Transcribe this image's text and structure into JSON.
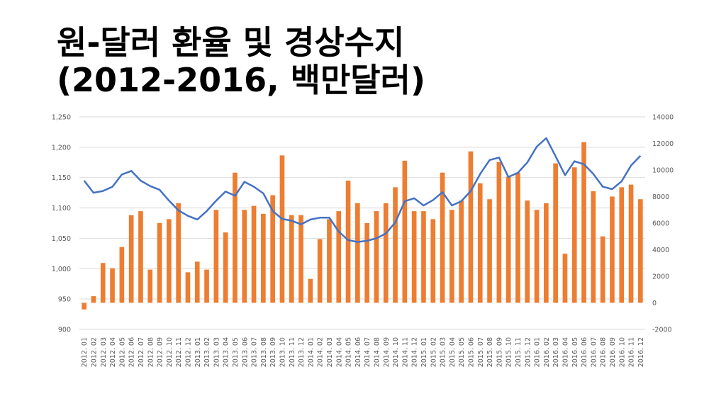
{
  "title": {
    "line1": "원-달러 환율 및 경상수지",
    "line2": "(2012-2016, 백만달러)"
  },
  "chart_data": {
    "type": "bar+line",
    "x": [
      "2012. 01",
      "2012. 02",
      "2012. 03",
      "2012. 04",
      "2012. 05",
      "2012. 06",
      "2012. 07",
      "2012. 08",
      "2012. 09",
      "2012. 10",
      "2012. 11",
      "2012. 12",
      "2013. 01",
      "2013. 02",
      "2013. 03",
      "2013. 04",
      "2013. 05",
      "2013. 06",
      "2013. 07",
      "2013. 08",
      "2013. 09",
      "2013. 10",
      "2013. 11",
      "2013. 12",
      "2014. 01",
      "2014. 02",
      "2014. 03",
      "2014. 04",
      "2014. 05",
      "2014. 06",
      "2014. 07",
      "2014. 08",
      "2014. 09",
      "2014. 10",
      "2014. 11",
      "2014. 12",
      "2015. 01",
      "2015. 02",
      "2015. 03",
      "2015. 04",
      "2015. 05",
      "2015. 06",
      "2015. 07",
      "2015. 08",
      "2015. 09",
      "2015. 10",
      "2015. 11",
      "2015. 12",
      "2016. 01",
      "2016. 02",
      "2016. 03",
      "2016. 04",
      "2016. 05",
      "2016. 06",
      "2016. 07",
      "2016. 08",
      "2016. 09",
      "2016. 10",
      "2016. 11",
      "2016. 12"
    ],
    "left_axis": {
      "ylim": [
        900,
        1250
      ],
      "ticks": [
        "900",
        "950",
        "1,000",
        "1,050",
        "1,100",
        "1,150",
        "1,200",
        "1,250"
      ]
    },
    "right_axis": {
      "ylim": [
        -2000,
        14000
      ],
      "ticks": [
        "-2000",
        "0",
        "2000",
        "4000",
        "6000",
        "8000",
        "10000",
        "12000",
        "14000"
      ]
    },
    "grid": true,
    "series": [
      {
        "type": "bar",
        "axis": "right",
        "color": "#ED7D31",
        "values": [
          -500,
          500,
          3000,
          2600,
          4200,
          6600,
          6900,
          2500,
          6000,
          6300,
          7500,
          2300,
          3100,
          2500,
          7000,
          5300,
          9800,
          7000,
          7300,
          6700,
          8100,
          11100,
          6600,
          6600,
          1800,
          4800,
          6300,
          6900,
          9200,
          7500,
          6000,
          6900,
          7500,
          8700,
          10700,
          6900,
          6900,
          6300,
          9800,
          7000,
          7700,
          11400,
          9000,
          7800,
          10600,
          9500,
          9800,
          7700,
          7000,
          7500,
          10500,
          3700,
          10200,
          12100,
          8400,
          5000,
          8000,
          8700,
          8900,
          7800
        ]
      },
      {
        "type": "line",
        "axis": "left",
        "color": "#4472C4",
        "values": [
          1145,
          1125,
          1128,
          1135,
          1155,
          1161,
          1145,
          1136,
          1130,
          1112,
          1096,
          1087,
          1081,
          1095,
          1112,
          1127,
          1120,
          1143,
          1135,
          1124,
          1095,
          1082,
          1079,
          1073,
          1081,
          1084,
          1084,
          1061,
          1047,
          1044,
          1046,
          1050,
          1058,
          1076,
          1111,
          1116,
          1104,
          1113,
          1126,
          1104,
          1111,
          1128,
          1156,
          1179,
          1183,
          1151,
          1158,
          1175,
          1201,
          1215,
          1185,
          1154,
          1177,
          1172,
          1156,
          1135,
          1131,
          1144,
          1170,
          1186
        ]
      }
    ]
  }
}
